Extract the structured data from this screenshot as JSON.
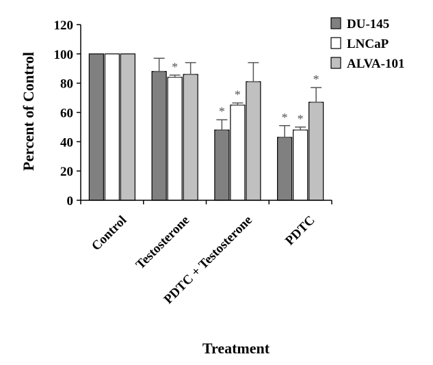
{
  "chart_data": {
    "type": "bar",
    "title": "",
    "xlabel": "Treatment",
    "ylabel": "Percent of Control",
    "ylim": [
      0,
      120
    ],
    "yticks": [
      0,
      20,
      40,
      60,
      80,
      100,
      120
    ],
    "categories": [
      "Control",
      "Testosterone",
      "PDTC + Testosterone",
      "PDTC"
    ],
    "series": [
      {
        "name": "DU-145",
        "color": "#808080",
        "values": [
          100,
          88,
          48,
          43
        ],
        "errors": [
          0,
          9,
          7,
          8
        ],
        "significant": [
          false,
          false,
          true,
          true
        ]
      },
      {
        "name": "LNCaP",
        "color": "#ffffff",
        "values": [
          100,
          84,
          65,
          48
        ],
        "errors": [
          0,
          1.5,
          1.5,
          2
        ],
        "significant": [
          false,
          true,
          true,
          true
        ]
      },
      {
        "name": "ALVA-101",
        "color": "#c0c0c0",
        "values": [
          100,
          86,
          81,
          67
        ],
        "errors": [
          0,
          8,
          13,
          10
        ],
        "significant": [
          false,
          false,
          false,
          true
        ]
      }
    ],
    "significance_marker": "*",
    "legend_position": "top-right"
  }
}
